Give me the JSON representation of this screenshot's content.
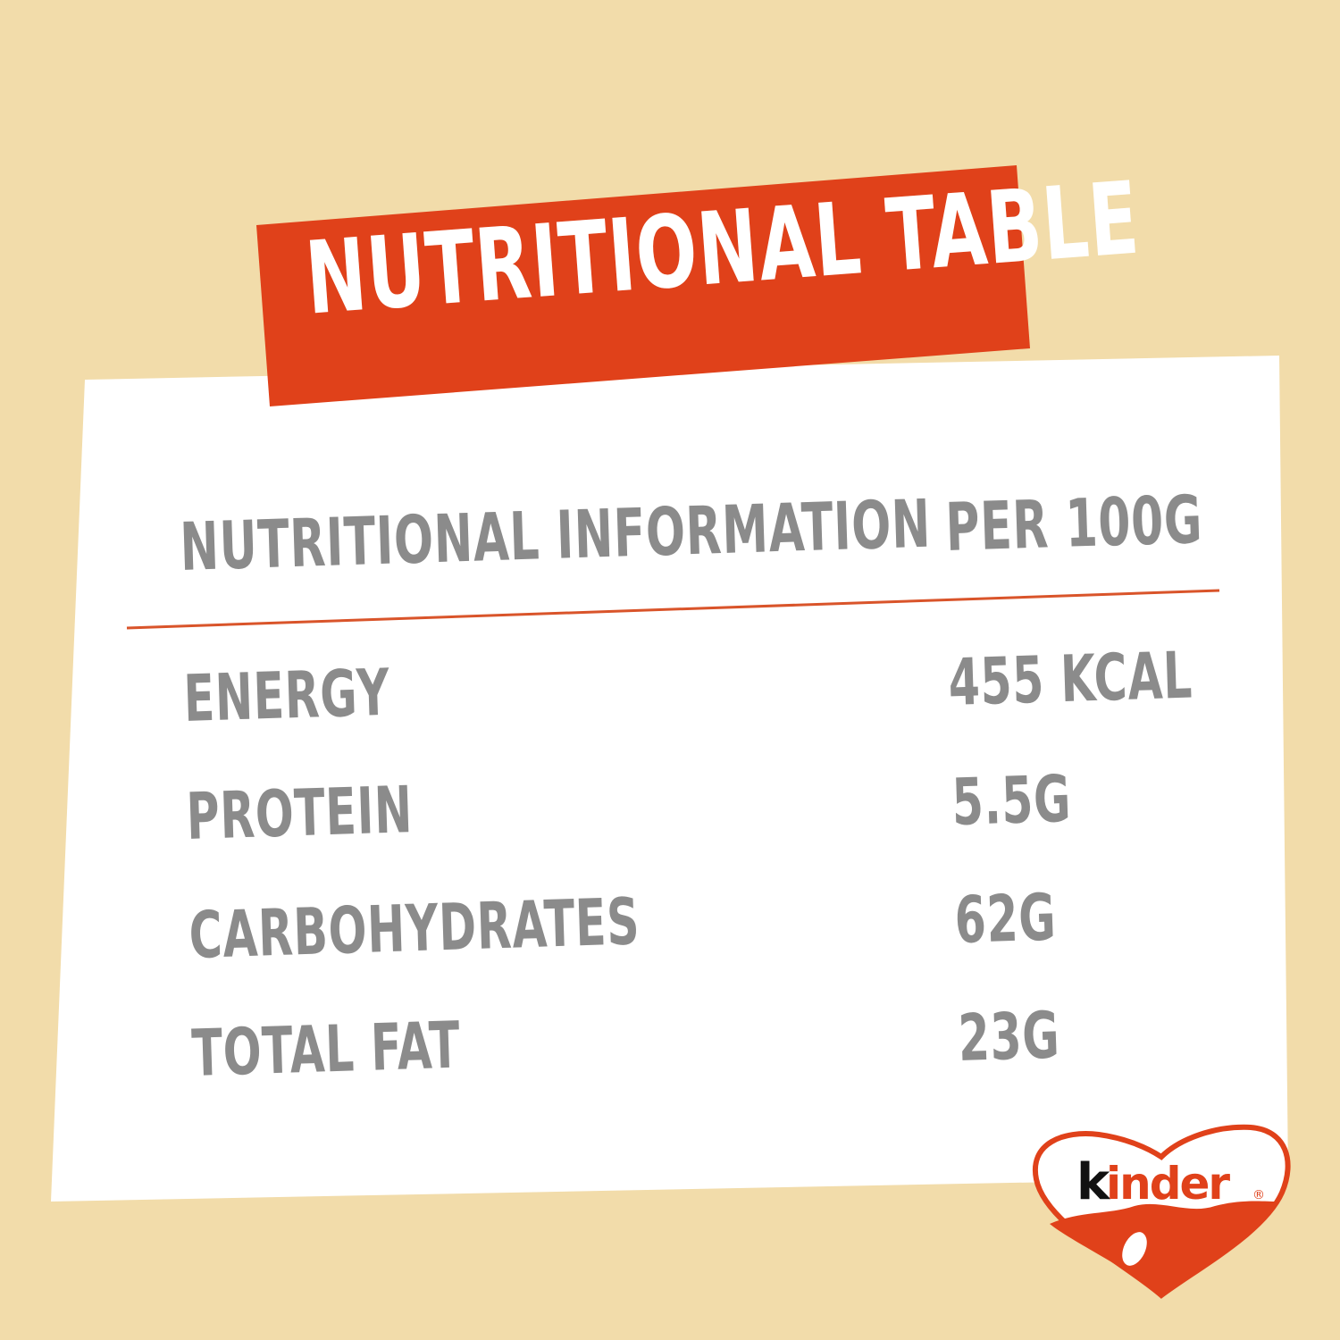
{
  "title": "NUTRITIONAL TABLE",
  "table": {
    "header": {
      "label": "NUTRITIONAL INFORMATION",
      "value": "PER 100G"
    },
    "rows": [
      {
        "label": "ENERGY",
        "value": "455 KCAL"
      },
      {
        "label": "PROTEIN",
        "value": "5.5G"
      },
      {
        "label": "CARBOHYDRATES",
        "value": "62G"
      },
      {
        "label": "TOTAL FAT",
        "value": "23G"
      }
    ]
  },
  "logo": {
    "text": "kinder",
    "registered": "®"
  },
  "colors": {
    "background": "#f2dcaa",
    "banner": "#e0411a",
    "card": "#ffffff",
    "text": "#8b8b8b",
    "divider": "#d9542a"
  }
}
